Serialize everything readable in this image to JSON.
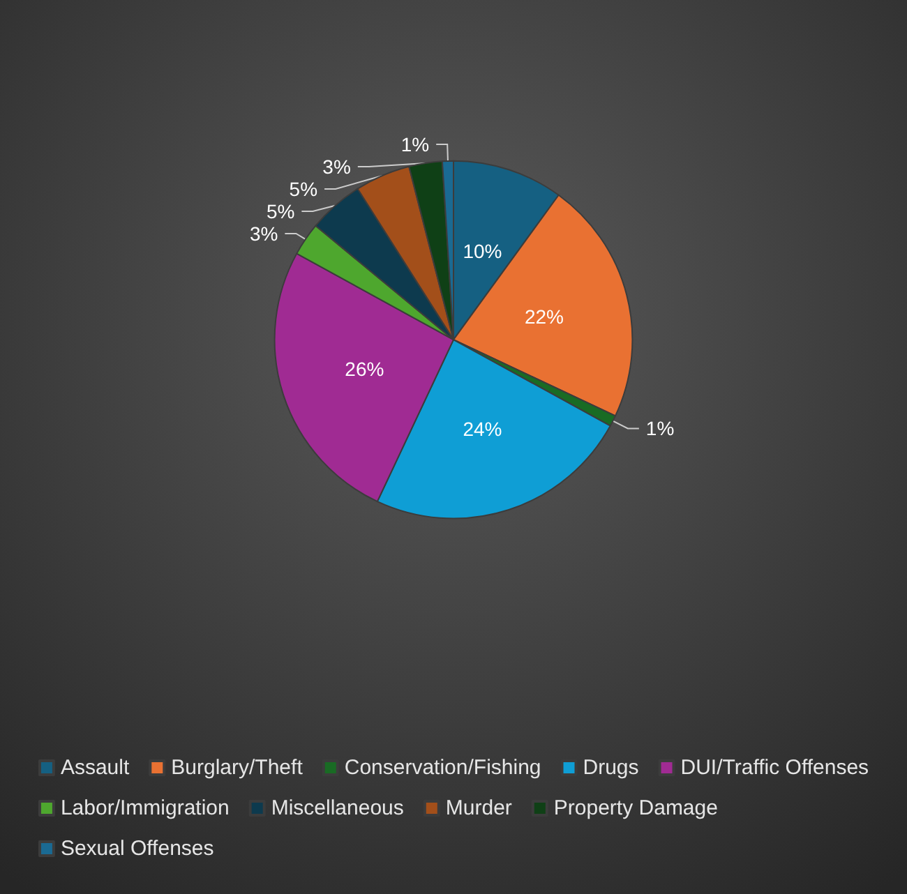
{
  "chart_data": {
    "type": "pie",
    "categories": [
      "Assault",
      "Burglary/Theft",
      "Conservation/Fishing",
      "Drugs",
      "DUI/Traffic Offenses",
      "Labor/Immigration",
      "Miscellaneous",
      "Murder",
      "Property Damage",
      "Sexual Offenses"
    ],
    "values": [
      10,
      22,
      1,
      24,
      26,
      3,
      5,
      5,
      3,
      1
    ],
    "value_labels": [
      "10%",
      "22%",
      "1%",
      "24%",
      "26%",
      "3%",
      "5%",
      "5%",
      "3%",
      "1%"
    ],
    "colors": [
      "#156082",
      "#e97132",
      "#196b24",
      "#0f9ed5",
      "#a02b93",
      "#4ea72e",
      "#0d3a4e",
      "#a34f1a",
      "#0f4016",
      "#1a6a93"
    ],
    "legend": "bottom"
  }
}
